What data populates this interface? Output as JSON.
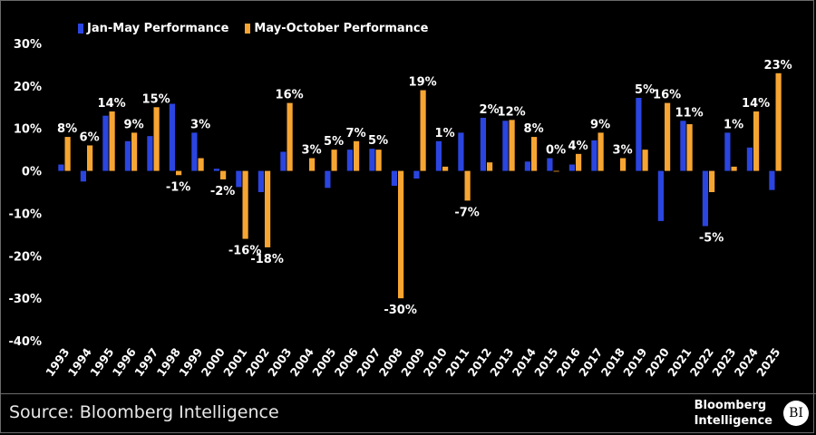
{
  "legend": {
    "series_a": "Jan-May Performance",
    "series_b": "May-October Performance"
  },
  "footer": {
    "source": "Source: Bloomberg Intelligence",
    "brand_line1": "Bloomberg",
    "brand_line2": "Intelligence",
    "logo_text": "BI"
  },
  "colors": {
    "series_a": "#2b45e0",
    "series_b": "#f7a532",
    "background": "#000000",
    "text": "#ffffff"
  },
  "chart_data": {
    "type": "bar",
    "title": "",
    "xlabel": "",
    "ylabel": "",
    "ylim": [
      -40,
      30
    ],
    "yticks": [
      30,
      20,
      10,
      0,
      -10,
      -20,
      -30,
      -40
    ],
    "ytick_labels": [
      "30%",
      "20%",
      "10%",
      "0%",
      "-10%",
      "-20%",
      "-30%",
      "-40%"
    ],
    "grid": false,
    "legend_position": "top-left",
    "categories": [
      "1993",
      "1994",
      "1995",
      "1996",
      "1997",
      "1998",
      "1999",
      "2000",
      "2001",
      "2002",
      "2003",
      "2004",
      "2005",
      "2006",
      "2007",
      "2008",
      "2009",
      "2010",
      "2011",
      "2012",
      "2013",
      "2014",
      "2015",
      "2016",
      "2017",
      "2018",
      "2019",
      "2020",
      "2021",
      "2022",
      "2023",
      "2024",
      "2025"
    ],
    "series": [
      {
        "name": "Jan-May Performance",
        "values": [
          1.5,
          -2.5,
          13,
          7,
          8.2,
          15.8,
          9,
          0.5,
          -3.8,
          -5,
          4.5,
          0,
          -4,
          5,
          5.2,
          -3.5,
          -1.8,
          7,
          9,
          12.5,
          11.8,
          2.2,
          3,
          1.5,
          7.2,
          0,
          17.2,
          -11.8,
          11.8,
          -13,
          9,
          5.5,
          -4.5
        ]
      },
      {
        "name": "May-October Performance",
        "values": [
          8,
          6,
          14,
          9,
          15,
          -1,
          3,
          -2,
          -16,
          -18,
          16,
          3,
          5,
          7,
          5,
          -30,
          19,
          1,
          -7,
          2,
          12,
          8,
          0,
          4,
          9,
          3,
          5,
          16,
          11,
          -5,
          1,
          14,
          23
        ]
      }
    ],
    "data_labels": [
      "8%",
      "6%",
      "14%",
      "9%",
      "15%",
      "-1%",
      "3%",
      "-2%",
      "-16%",
      "-18%",
      "16%",
      "3%",
      "5%",
      "7%",
      "5%",
      "-30%",
      "19%",
      "1%",
      "-7%",
      "2%",
      "12%",
      "8%",
      "0%",
      "4%",
      "9%",
      "3%",
      "5%",
      "16%",
      "11%",
      "-5%",
      "1%",
      "14%",
      "23%"
    ]
  }
}
